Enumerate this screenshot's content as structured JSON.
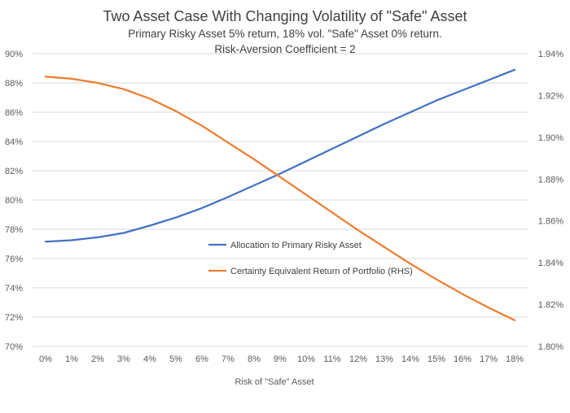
{
  "chart_data": {
    "type": "line",
    "title": "Two Asset Case With Changing Volatility of \"Safe\" Asset",
    "subtitle_lines": [
      "Primary Risky Asset 5% return, 18% vol. \"Safe\" Asset 0% return.",
      "Risk-Aversion Coefficient = 2"
    ],
    "xlabel": "Risk of \"Safe\" Asset",
    "categories": [
      "0%",
      "1%",
      "2%",
      "3%",
      "4%",
      "5%",
      "6%",
      "7%",
      "8%",
      "9%",
      "10%",
      "11%",
      "12%",
      "13%",
      "14%",
      "15%",
      "16%",
      "17%",
      "18%"
    ],
    "y_left": {
      "min": 70,
      "max": 90,
      "ticks": [
        70,
        72,
        74,
        76,
        78,
        80,
        82,
        84,
        86,
        88,
        90
      ],
      "tick_labels": [
        "70%",
        "72%",
        "74%",
        "76%",
        "78%",
        "80%",
        "82%",
        "84%",
        "86%",
        "88%",
        "90%"
      ]
    },
    "y_right": {
      "min": 1.8,
      "max": 1.94,
      "ticks": [
        1.8,
        1.82,
        1.84,
        1.86,
        1.88,
        1.9,
        1.92,
        1.94
      ],
      "tick_labels": [
        "1.80%",
        "1.82%",
        "1.84%",
        "1.86%",
        "1.88%",
        "1.90%",
        "1.92%",
        "1.94%"
      ]
    },
    "series": [
      {
        "name": "Allocation to Primary Risky Asset",
        "axis": "left",
        "color": "#4472C4",
        "values": [
          77.15,
          77.25,
          77.45,
          77.75,
          78.25,
          78.8,
          79.45,
          80.2,
          81.0,
          81.8,
          82.65,
          83.5,
          84.35,
          85.2,
          86.0,
          86.8,
          87.5,
          88.2,
          88.9
        ]
      },
      {
        "name": "Certainty Equivalent Return of Portfolio (RHS)",
        "axis": "right",
        "color": "#ED7D31",
        "values": [
          1.929,
          1.928,
          1.926,
          1.923,
          1.9185,
          1.9125,
          1.9055,
          1.8975,
          1.8895,
          1.881,
          1.8725,
          1.864,
          1.8555,
          1.8475,
          1.8395,
          1.832,
          1.825,
          1.8185,
          1.8125
        ]
      }
    ],
    "legend_position": "center"
  }
}
